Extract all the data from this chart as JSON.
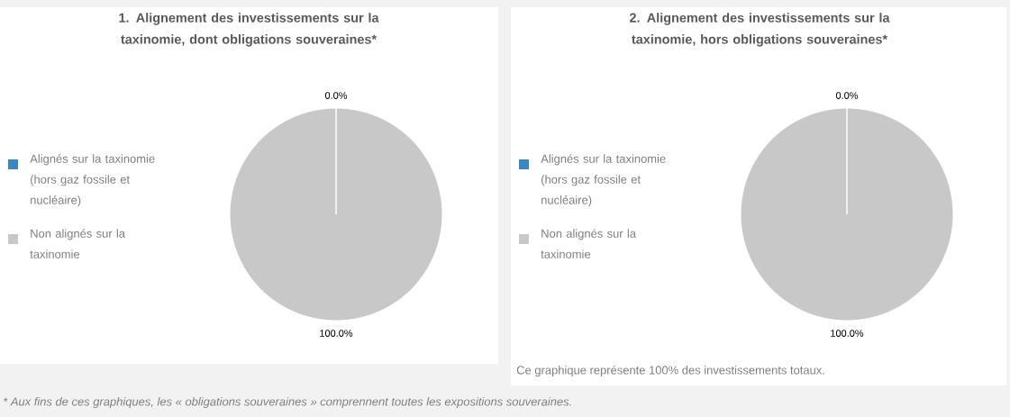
{
  "chart_data": [
    {
      "type": "pie",
      "title": "1. Alignement des investissements sur la taxinomie, dont obligations souveraines*",
      "categories": [
        "Alignés sur la taxinomie (hors gaz fossile et nucléaire)",
        "Non alignés sur la taxinomie"
      ],
      "values": [
        0,
        100
      ],
      "colors": [
        "#3a87c8",
        "#c8c8c8"
      ],
      "value_labels": [
        "0.0%",
        "100.0%"
      ],
      "legend": "left",
      "annotations": [
        "* Aux fins de ces graphiques, les «  obligations souveraines  » comprennent toutes les expositions souveraines."
      ]
    },
    {
      "type": "pie",
      "title": "2. Alignement des investissements sur la taxinomie, hors obligations souveraines*",
      "categories": [
        "Alignés sur la taxinomie (hors gaz fossile et nucléaire)",
        "Non alignés sur la taxinomie"
      ],
      "values": [
        0,
        100
      ],
      "colors": [
        "#3a87c8",
        "#c8c8c8"
      ],
      "value_labels": [
        "0.0%",
        "100.0%"
      ],
      "legend": "left",
      "annotations": [
        "Ce graphique représente 100% des investissements totaux."
      ]
    }
  ]
}
